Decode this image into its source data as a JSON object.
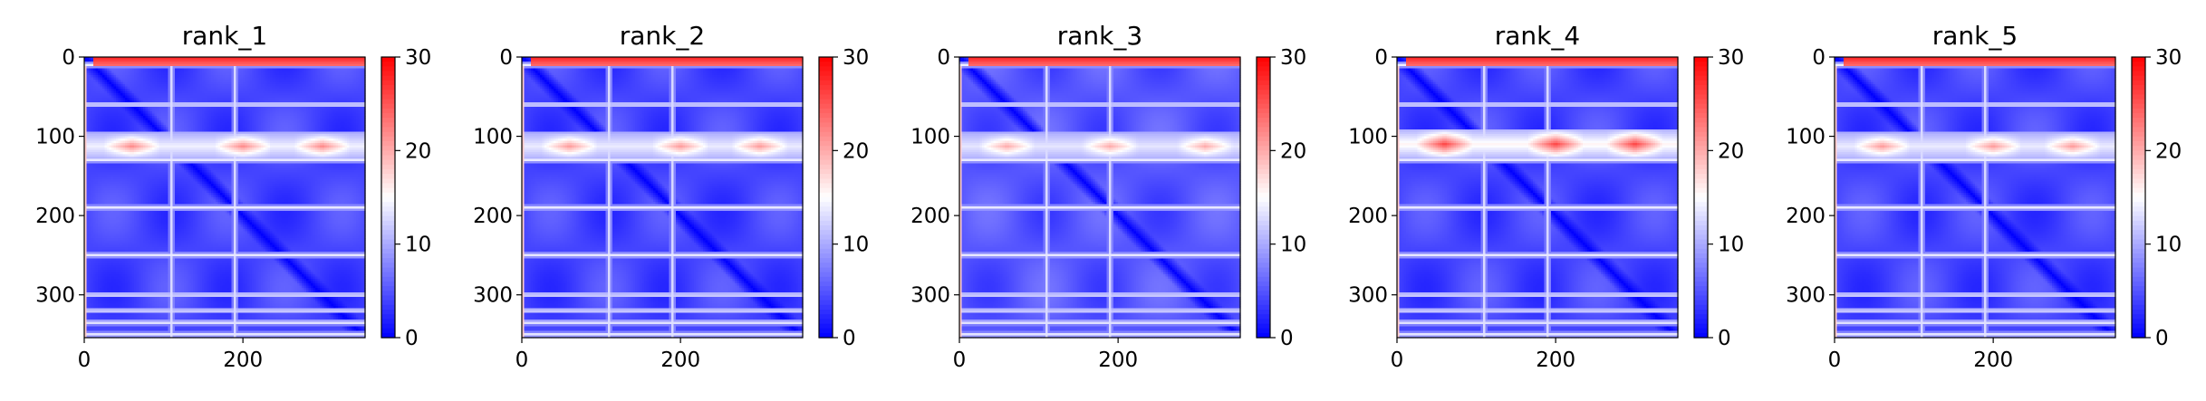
{
  "figure": {
    "type": "heatmap",
    "colormap": {
      "name": "bwr",
      "low": "#0000ff",
      "mid": "#ffffff",
      "high": "#ff0000"
    },
    "panel_titles": [
      "rank_1",
      "rank_2",
      "rank_3",
      "rank_4",
      "rank_5"
    ]
  },
  "chart_data": [
    {
      "type": "heatmap",
      "title": "rank_1",
      "xlim": [
        0,
        354
      ],
      "ylim": [
        354,
        0
      ],
      "x_ticks": [
        0,
        200
      ],
      "y_ticks": [
        0,
        100,
        200,
        300
      ],
      "colorbar": {
        "range": [
          0,
          30
        ],
        "ticks": [
          0,
          10,
          20,
          30
        ]
      },
      "features": {
        "diagonal_value": 0,
        "top_band": {
          "rows": [
            0,
            10
          ],
          "value": 28
        },
        "hot_band": {
          "rows": [
            95,
            130
          ],
          "peaks_at_x": [
            60,
            200,
            300
          ],
          "peak_value": 22
        },
        "bright_lines_rows": [
          10,
          60,
          130,
          190,
          250,
          300,
          320,
          335,
          350
        ],
        "bright_lines_cols": [
          110,
          190
        ],
        "background_value": 4
      }
    },
    {
      "type": "heatmap",
      "title": "rank_2",
      "xlim": [
        0,
        354
      ],
      "ylim": [
        354,
        0
      ],
      "x_ticks": [
        0,
        200
      ],
      "y_ticks": [
        0,
        100,
        200,
        300
      ],
      "colorbar": {
        "range": [
          0,
          30
        ],
        "ticks": [
          0,
          10,
          20,
          30
        ]
      },
      "features": {
        "diagonal_value": 0,
        "top_band": {
          "rows": [
            0,
            10
          ],
          "value": 28
        },
        "hot_band": {
          "rows": [
            95,
            130
          ],
          "peaks_at_x": [
            60,
            200,
            300
          ],
          "peak_value": 21
        },
        "bright_lines_rows": [
          10,
          60,
          130,
          190,
          250,
          300,
          320,
          335,
          350
        ],
        "bright_lines_cols": [
          110,
          190
        ],
        "background_value": 4
      }
    },
    {
      "type": "heatmap",
      "title": "rank_3",
      "xlim": [
        0,
        354
      ],
      "ylim": [
        354,
        0
      ],
      "x_ticks": [
        0,
        200
      ],
      "y_ticks": [
        0,
        100,
        200,
        300
      ],
      "colorbar": {
        "range": [
          0,
          30
        ],
        "ticks": [
          0,
          10,
          20,
          30
        ]
      },
      "features": {
        "diagonal_value": 0,
        "top_band": {
          "rows": [
            0,
            10
          ],
          "value": 28
        },
        "hot_band": {
          "rows": [
            95,
            130
          ],
          "peaks_at_x": [
            60,
            190,
            310
          ],
          "peak_value": 20
        },
        "bright_lines_rows": [
          10,
          60,
          130,
          190,
          250,
          300,
          320,
          335,
          350
        ],
        "bright_lines_cols": [
          110,
          190
        ],
        "background_value": 5
      }
    },
    {
      "type": "heatmap",
      "title": "rank_4",
      "xlim": [
        0,
        354
      ],
      "ylim": [
        354,
        0
      ],
      "x_ticks": [
        0,
        200
      ],
      "y_ticks": [
        0,
        100,
        200,
        300
      ],
      "colorbar": {
        "range": [
          0,
          30
        ],
        "ticks": [
          0,
          10,
          20,
          30
        ]
      },
      "features": {
        "diagonal_value": 0,
        "top_band": {
          "rows": [
            0,
            10
          ],
          "value": 28
        },
        "hot_band": {
          "rows": [
            90,
            130
          ],
          "peaks_at_x": [
            60,
            200,
            300
          ],
          "peak_value": 26
        },
        "bright_lines_rows": [
          10,
          60,
          130,
          190,
          250,
          300,
          320,
          335,
          350
        ],
        "bright_lines_cols": [
          110,
          190
        ],
        "background_value": 4
      }
    },
    {
      "type": "heatmap",
      "title": "rank_5",
      "xlim": [
        0,
        354
      ],
      "ylim": [
        354,
        0
      ],
      "x_ticks": [
        0,
        200
      ],
      "y_ticks": [
        0,
        100,
        200,
        300
      ],
      "colorbar": {
        "range": [
          0,
          30
        ],
        "ticks": [
          0,
          10,
          20,
          30
        ]
      },
      "features": {
        "diagonal_value": 0,
        "top_band": {
          "rows": [
            0,
            10
          ],
          "value": 28
        },
        "hot_band": {
          "rows": [
            95,
            130
          ],
          "peaks_at_x": [
            60,
            200,
            300
          ],
          "peak_value": 21
        },
        "bright_lines_rows": [
          10,
          60,
          130,
          190,
          250,
          300,
          320,
          335,
          350
        ],
        "bright_lines_cols": [
          110,
          190
        ],
        "background_value": 4
      }
    }
  ]
}
